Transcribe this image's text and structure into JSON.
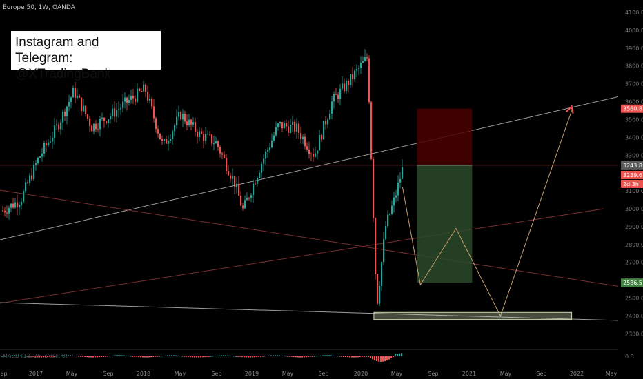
{
  "symbol_label": "Europe 50, 1W, OANDA",
  "banner": {
    "line1": "Instagram and Telegram:",
    "line2": "@XTradingBank"
  },
  "macd_label": "MACD (12, 26, close, 9)",
  "colors": {
    "background": "#000000",
    "up": "#26a69a",
    "down": "#ef5350",
    "trendline": "#9e9e9e",
    "stop_zone": "#4a0000",
    "target_zone": "#2b4a2b",
    "projection": "#c8a070",
    "arrow": "#ef5350",
    "support_box": "#c8d8b0"
  },
  "price_axis": {
    "ticks": [
      "4100.0",
      "4000.0",
      "3900.0",
      "3800.0",
      "3700.0",
      "3600.0",
      "3500.0",
      "3400.0",
      "3300.0",
      "3200.0",
      "3100.0",
      "3000.0",
      "2900.0",
      "2800.0",
      "2700.0",
      "2600.0",
      "2500.0",
      "2400.0",
      "2300.0"
    ],
    "macd_tick": "0.0",
    "tags": [
      {
        "label": "3560.8",
        "kind": "stop"
      },
      {
        "label": "3243.8",
        "kind": "last"
      },
      {
        "label": "3239.6",
        "kind": "price"
      },
      {
        "label": "2d 3h",
        "kind": "countdown"
      },
      {
        "label": "2586.5",
        "kind": "target"
      }
    ]
  },
  "time_axis": {
    "ticks": [
      "Sep",
      "2017",
      "May",
      "Sep",
      "2018",
      "May",
      "Sep",
      "2019",
      "May",
      "Sep",
      "2020",
      "May",
      "Sep",
      "2021",
      "May",
      "Sep",
      "2022",
      "May"
    ]
  },
  "chart_data": {
    "type": "candlestick",
    "title": "",
    "timeframe": "1W",
    "ylim": [
      2230,
      4150
    ],
    "x_range": [
      "2016-09",
      "2022-05"
    ],
    "annotations": {
      "stop_level": 3560.8,
      "entry_level": 3243.8,
      "target_level": 2586.5,
      "current_price": 3239.6,
      "projection_path": [
        {
          "date": "2020-06",
          "price": 3120
        },
        {
          "date": "2020-08",
          "price": 2575
        },
        {
          "date": "2020-12",
          "price": 2890
        },
        {
          "date": "2021-05",
          "price": 2400
        },
        {
          "date": "2022-01",
          "price": 3550
        }
      ],
      "support_zone": {
        "from": "2020-02",
        "to": "2022-01",
        "low": 2380,
        "high": 2420
      }
    },
    "close_series": [
      {
        "date": "2016-09",
        "close": 2990
      },
      {
        "date": "2016-11",
        "close": 3050
      },
      {
        "date": "2017-01",
        "close": 3280
      },
      {
        "date": "2017-03",
        "close": 3450
      },
      {
        "date": "2017-05",
        "close": 3660
      },
      {
        "date": "2017-07",
        "close": 3460
      },
      {
        "date": "2017-09",
        "close": 3520
      },
      {
        "date": "2017-11",
        "close": 3600
      },
      {
        "date": "2018-01",
        "close": 3670
      },
      {
        "date": "2018-03",
        "close": 3350
      },
      {
        "date": "2018-05",
        "close": 3530
      },
      {
        "date": "2018-07",
        "close": 3420
      },
      {
        "date": "2018-09",
        "close": 3370
      },
      {
        "date": "2018-11",
        "close": 3150
      },
      {
        "date": "2018-12",
        "close": 2990
      },
      {
        "date": "2019-02",
        "close": 3250
      },
      {
        "date": "2019-04",
        "close": 3470
      },
      {
        "date": "2019-06",
        "close": 3450
      },
      {
        "date": "2019-08",
        "close": 3300
      },
      {
        "date": "2019-10",
        "close": 3600
      },
      {
        "date": "2019-12",
        "close": 3720
      },
      {
        "date": "2020-02",
        "close": 3850
      },
      {
        "date": "2020-03",
        "close": 2450
      },
      {
        "date": "2020-04",
        "close": 2900
      },
      {
        "date": "2020-05",
        "close": 3050
      },
      {
        "date": "2020-06",
        "close": 3240
      }
    ]
  }
}
